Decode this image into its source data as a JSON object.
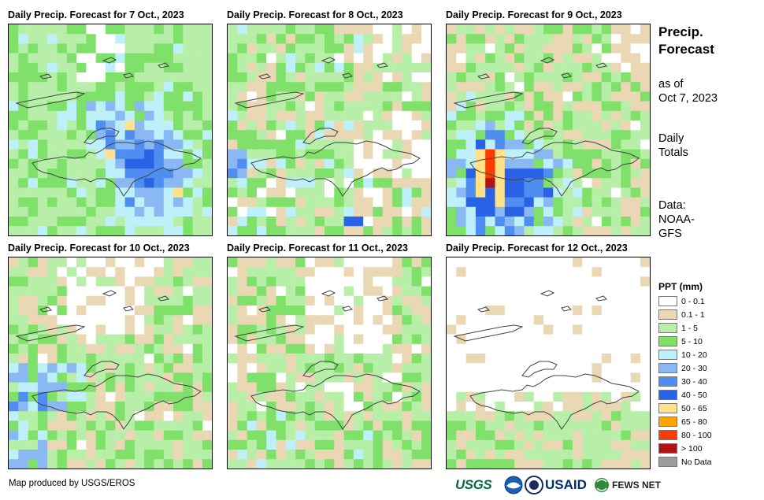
{
  "panels": [
    {
      "title": "Daily Precip. Forecast for 7 Oct., 2023",
      "seed": 7,
      "pattern": "p7"
    },
    {
      "title": "Daily Precip. Forecast for 8 Oct., 2023",
      "seed": 8,
      "pattern": "p8"
    },
    {
      "title": "Daily Precip. Forecast for 9 Oct., 2023",
      "seed": 9,
      "pattern": "p9"
    },
    {
      "title": "Daily Precip. Forecast for 10 Oct., 2023",
      "seed": 10,
      "pattern": "p10"
    },
    {
      "title": "Daily Precip. Forecast for 11 Oct., 2023",
      "seed": 11,
      "pattern": "p11"
    },
    {
      "title": "Daily Precip. Forecast for 12 Oct., 2023",
      "seed": 12,
      "pattern": "p12"
    }
  ],
  "sidebar": {
    "heading_line1": "Precip.",
    "heading_line2": "Forecast",
    "asof_line1": "as of",
    "asof_line2": "Oct 7, 2023",
    "daily_line1": "Daily",
    "daily_line2": "Totals",
    "data_line1": "Data:",
    "data_line2": "NOAA-",
    "data_line3": "GFS"
  },
  "legend": {
    "title": "PPT (mm)",
    "items": [
      {
        "label": "0 - 0.1",
        "color": "#ffffff"
      },
      {
        "label": "0.1 - 1",
        "color": "#ead8b5"
      },
      {
        "label": "1 - 5",
        "color": "#b8efa8"
      },
      {
        "label": "5 - 10",
        "color": "#7fe06a"
      },
      {
        "label": "10 - 20",
        "color": "#bdf0f8"
      },
      {
        "label": "20 - 30",
        "color": "#8ab8f2"
      },
      {
        "label": "30 - 40",
        "color": "#4f8ef0"
      },
      {
        "label": "40 - 50",
        "color": "#2a62e6"
      },
      {
        "label": "50 - 65",
        "color": "#ffe287"
      },
      {
        "label": "65 - 80",
        "color": "#ffa500"
      },
      {
        "label": "80 - 100",
        "color": "#ff3a00"
      },
      {
        "label": "> 100",
        "color": "#b01414"
      },
      {
        "label": "No Data",
        "color": "#9b9b9b"
      }
    ]
  },
  "footer": {
    "credit": "Map produced by USGS/EROS",
    "logo_usgs": "USGS",
    "logo_usaid": "USAID",
    "logo_fews": "FEWS NET"
  }
}
